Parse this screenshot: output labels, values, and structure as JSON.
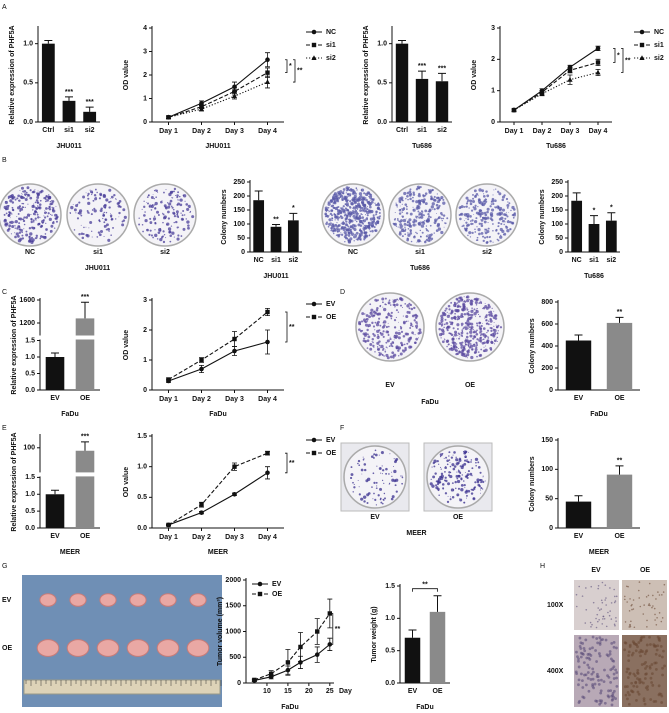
{
  "panel_letters": [
    "A",
    "B",
    "C",
    "D",
    "E",
    "F",
    "G",
    "H"
  ],
  "colony_images": [
    {
      "labels": [
        "NC",
        "si1",
        "si2"
      ],
      "group": "JHU011"
    },
    {
      "labels": [
        "NC",
        "si1",
        "si2"
      ],
      "group": "Tu686"
    },
    {
      "labels": [
        "EV",
        "OE"
      ],
      "group": "FaDu"
    },
    {
      "labels": [
        "EV",
        "OE"
      ],
      "group": "MEER"
    }
  ],
  "tumor_photo": {
    "rows": [
      "EV",
      "OE"
    ]
  },
  "ihc": {
    "columns": [
      "EV",
      "OE"
    ],
    "rows": [
      "100X",
      "400X"
    ]
  },
  "chart_data": [
    {
      "type": "bar",
      "ylabel": "Relative expression of PHF5A",
      "xlabel": "JHU011",
      "categories": [
        "Ctrl",
        "si1",
        "si2"
      ],
      "values": [
        1.0,
        0.27,
        0.13
      ],
      "errors": [
        0.04,
        0.05,
        0.06
      ],
      "colors": [
        "#111111",
        "#111111",
        "#111111"
      ],
      "ylim": [
        0,
        1.2
      ],
      "yticks": [
        {
          "value": 0,
          "label": "0.0"
        },
        {
          "value": 0.5,
          "label": "0.5"
        },
        {
          "value": 1,
          "label": "1.0"
        }
      ],
      "annotations": [
        null,
        "***",
        "***"
      ]
    },
    {
      "type": "line",
      "ylabel": "OD value",
      "xlabel": "JHU011",
      "categories": [
        "Day 1",
        "Day 2",
        "Day 3",
        "Day 4"
      ],
      "series": [
        {
          "name": "NC",
          "color": "#111111",
          "style": "solid",
          "marker": "circle",
          "values": [
            0.2,
            0.8,
            1.5,
            2.65
          ],
          "errors": [
            0.05,
            0.1,
            0.2,
            0.3
          ]
        },
        {
          "name": "si1",
          "color": "#111111",
          "style": "dashed",
          "marker": "square",
          "values": [
            0.2,
            0.65,
            1.3,
            2.1
          ],
          "errors": [
            0.05,
            0.08,
            0.15,
            0.2
          ]
        },
        {
          "name": "si2",
          "color": "#111111",
          "style": "dotted",
          "marker": "triangle",
          "values": [
            0.2,
            0.55,
            1.1,
            1.7
          ],
          "errors": [
            0.05,
            0.08,
            0.12,
            0.25
          ]
        }
      ],
      "ylim": [
        0,
        4
      ],
      "yticks": [
        0,
        1,
        2,
        3,
        4
      ],
      "annotations": [
        null,
        "*",
        "**"
      ],
      "legend": "right"
    },
    {
      "type": "bar",
      "ylabel": "Relative expression of PHF5A",
      "xlabel": "Tu686",
      "categories": [
        "Ctrl",
        "si1",
        "si2"
      ],
      "values": [
        1.0,
        0.55,
        0.52
      ],
      "errors": [
        0.04,
        0.1,
        0.1
      ],
      "colors": [
        "#111111",
        "#111111",
        "#111111"
      ],
      "ylim": [
        0,
        1.2
      ],
      "yticks": [
        {
          "value": 0,
          "label": "0.0"
        },
        {
          "value": 0.5,
          "label": "0.5"
        },
        {
          "value": 1,
          "label": "1.0"
        }
      ],
      "annotations": [
        null,
        "***",
        "***"
      ]
    },
    {
      "type": "line",
      "ylabel": "OD value",
      "xlabel": "Tu686",
      "categories": [
        "Day 1",
        "Day 2",
        "Day 3",
        "Day 4"
      ],
      "series": [
        {
          "name": "NC",
          "color": "#111111",
          "style": "solid",
          "marker": "circle",
          "values": [
            0.38,
            1.0,
            1.75,
            2.35
          ],
          "errors": [
            0.04,
            0.06,
            0.06,
            0.07
          ]
        },
        {
          "name": "si1",
          "color": "#111111",
          "style": "dashed",
          "marker": "square",
          "values": [
            0.38,
            0.95,
            1.65,
            1.9
          ],
          "errors": [
            0.04,
            0.06,
            0.08,
            0.1
          ]
        },
        {
          "name": "si2",
          "color": "#111111",
          "style": "dotted",
          "marker": "triangle",
          "values": [
            0.38,
            0.9,
            1.35,
            1.58
          ],
          "errors": [
            0.04,
            0.06,
            0.15,
            0.1
          ]
        }
      ],
      "ylim": [
        0,
        3
      ],
      "yticks": [
        0,
        1,
        2,
        3
      ],
      "annotations": [
        null,
        "*",
        "**"
      ],
      "legend": "right"
    },
    {
      "type": "bar",
      "ylabel": "Colony numbers",
      "xlabel": "JHU011",
      "categories": [
        "NC",
        "si1",
        "si2"
      ],
      "values": [
        185,
        90,
        113
      ],
      "errors": [
        33,
        8,
        25
      ],
      "colors": [
        "#111111",
        "#111111",
        "#111111"
      ],
      "ylim": [
        0,
        250
      ],
      "yticks": [
        0,
        50,
        100,
        150,
        200,
        250
      ],
      "annotations": [
        null,
        "**",
        "*"
      ]
    },
    {
      "type": "bar",
      "ylabel": "Colony numbers",
      "xlabel": "Tu686",
      "categories": [
        "NC",
        "si1",
        "si2"
      ],
      "values": [
        183,
        100,
        112
      ],
      "errors": [
        28,
        30,
        28
      ],
      "colors": [
        "#111111",
        "#111111",
        "#111111"
      ],
      "ylim": [
        0,
        250
      ],
      "yticks": [
        0,
        50,
        100,
        150,
        200,
        250
      ],
      "annotations": [
        null,
        "*",
        "*"
      ]
    },
    {
      "type": "bar",
      "ylabel": "Relative expression of PHF5A",
      "xlabel": "FaDu",
      "categories": [
        "EV",
        "OE"
      ],
      "values": [
        1.0,
        1280
      ],
      "errors": [
        0.12,
        280
      ],
      "colors": [
        "#111111",
        "#8a8a8a"
      ],
      "ylim": [
        0,
        1600
      ],
      "ybreak": [
        1.5,
        1000
      ],
      "yticks": [
        {
          "value": 0,
          "label": "0.0"
        },
        {
          "value": 0.5,
          "label": "0.5"
        },
        {
          "value": 1,
          "label": "1.0"
        },
        {
          "value": 1.5,
          "label": "1.5"
        },
        1200,
        1600
      ],
      "annotations": [
        null,
        "***"
      ]
    },
    {
      "type": "line",
      "ylabel": "OD value",
      "xlabel": "FaDu",
      "categories": [
        "Day 1",
        "Day 2",
        "Day 3",
        "Day 4"
      ],
      "series": [
        {
          "name": "EV",
          "color": "#111111",
          "style": "solid",
          "marker": "circle",
          "values": [
            0.3,
            0.7,
            1.3,
            1.6
          ],
          "errors": [
            0.05,
            0.12,
            0.15,
            0.4
          ]
        },
        {
          "name": "OE",
          "color": "#111111",
          "style": "dashed",
          "marker": "square",
          "values": [
            0.35,
            1.0,
            1.7,
            2.6
          ],
          "errors": [
            0.05,
            0.08,
            0.25,
            0.12
          ]
        }
      ],
      "ylim": [
        0,
        3
      ],
      "yticks": [
        0,
        1,
        2,
        3
      ],
      "annotations": [
        null,
        "**"
      ],
      "legend": "right"
    },
    {
      "type": "bar",
      "ylabel": "Colony numbers",
      "xlabel": "FaDu",
      "categories": [
        "EV",
        "OE"
      ],
      "values": [
        450,
        610
      ],
      "errors": [
        50,
        50
      ],
      "colors": [
        "#111111",
        "#8a8a8a"
      ],
      "ylim": [
        0,
        800
      ],
      "yticks": [
        0,
        200,
        400,
        600,
        800
      ],
      "annotations": [
        null,
        "**"
      ]
    },
    {
      "type": "bar",
      "ylabel": "Relative expression of PHF5A",
      "xlabel": "MEER",
      "categories": [
        "EV",
        "OE"
      ],
      "values": [
        1.0,
        95
      ],
      "errors": [
        0.12,
        15
      ],
      "colors": [
        "#111111",
        "#8a8a8a"
      ],
      "ylim": [
        0,
        120
      ],
      "ybreak": [
        1.5,
        60
      ],
      "yticks": [
        {
          "value": 0,
          "label": "0.0"
        },
        {
          "value": 0.5,
          "label": "0.5"
        },
        {
          "value": 1,
          "label": "1.0"
        },
        {
          "value": 1.5,
          "label": "1.5"
        },
        100
      ],
      "annotations": [
        null,
        "***"
      ]
    },
    {
      "type": "line",
      "ylabel": "OD value",
      "xlabel": "MEER",
      "categories": [
        "Day 1",
        "Day 2",
        "Day 3",
        "Day 4"
      ],
      "series": [
        {
          "name": "EV",
          "color": "#111111",
          "style": "solid",
          "marker": "circle",
          "values": [
            0.05,
            0.25,
            0.55,
            0.9
          ],
          "errors": [
            0.01,
            0.02,
            0.02,
            0.1
          ]
        },
        {
          "name": "OE",
          "color": "#111111",
          "style": "dashed",
          "marker": "square",
          "values": [
            0.05,
            0.38,
            1.0,
            1.22
          ],
          "errors": [
            0.01,
            0.04,
            0.06,
            0.03
          ]
        }
      ],
      "ylim": [
        0,
        1.5
      ],
      "yticks": [
        {
          "value": 0,
          "label": "0.0"
        },
        {
          "value": 0.5,
          "label": "0.5"
        },
        {
          "value": 1,
          "label": "1.0"
        },
        {
          "value": 1.5,
          "label": "1.5"
        }
      ],
      "annotations": [
        null,
        "**"
      ],
      "legend": "right"
    },
    {
      "type": "bar",
      "ylabel": "Colony numbers",
      "xlabel": "MEER",
      "categories": [
        "EV",
        "OE"
      ],
      "values": [
        45,
        91
      ],
      "errors": [
        10,
        15
      ],
      "colors": [
        "#111111",
        "#8a8a8a"
      ],
      "ylim": [
        0,
        150
      ],
      "yticks": [
        0,
        50,
        100,
        150
      ],
      "annotations": [
        null,
        "**"
      ]
    },
    {
      "type": "line",
      "ylabel": "Tumor volume (mm³)",
      "xlabel": "FaDu",
      "x_unit_label": "Day",
      "x": [
        7,
        11,
        15,
        18,
        22,
        25
      ],
      "xlim": [
        5,
        26
      ],
      "xticks": [
        10,
        15,
        20,
        25
      ],
      "series": [
        {
          "name": "EV",
          "color": "#111111",
          "style": "solid",
          "marker": "circle",
          "values": [
            50,
            120,
            250,
            400,
            550,
            750
          ],
          "errors": [
            20,
            40,
            80,
            120,
            150,
            120
          ]
        },
        {
          "name": "OE",
          "color": "#111111",
          "style": "dashed",
          "marker": "square",
          "values": [
            60,
            180,
            400,
            700,
            1000,
            1350
          ],
          "errors": [
            20,
            60,
            250,
            280,
            250,
            280
          ]
        }
      ],
      "ylim": [
        0,
        2000
      ],
      "yticks": [
        0,
        500,
        1000,
        1500,
        2000
      ],
      "annotations": [
        null,
        "**"
      ],
      "legend": "upper left"
    },
    {
      "type": "bar",
      "ylabel": "Tumor weight (g)",
      "xlabel": "FaDu",
      "categories": [
        "EV",
        "OE"
      ],
      "values": [
        0.7,
        1.1
      ],
      "errors": [
        0.12,
        0.25
      ],
      "colors": [
        "#111111",
        "#8a8a8a"
      ],
      "ylim": [
        0,
        1.5
      ],
      "yticks": [
        {
          "value": 0,
          "label": "0.0"
        },
        {
          "value": 0.5,
          "label": "0.5"
        },
        {
          "value": 1,
          "label": "1.0"
        },
        {
          "value": 1.5,
          "label": "1.5"
        }
      ],
      "annotations": [
        null,
        "**"
      ],
      "annotation_style": "bracket"
    }
  ]
}
